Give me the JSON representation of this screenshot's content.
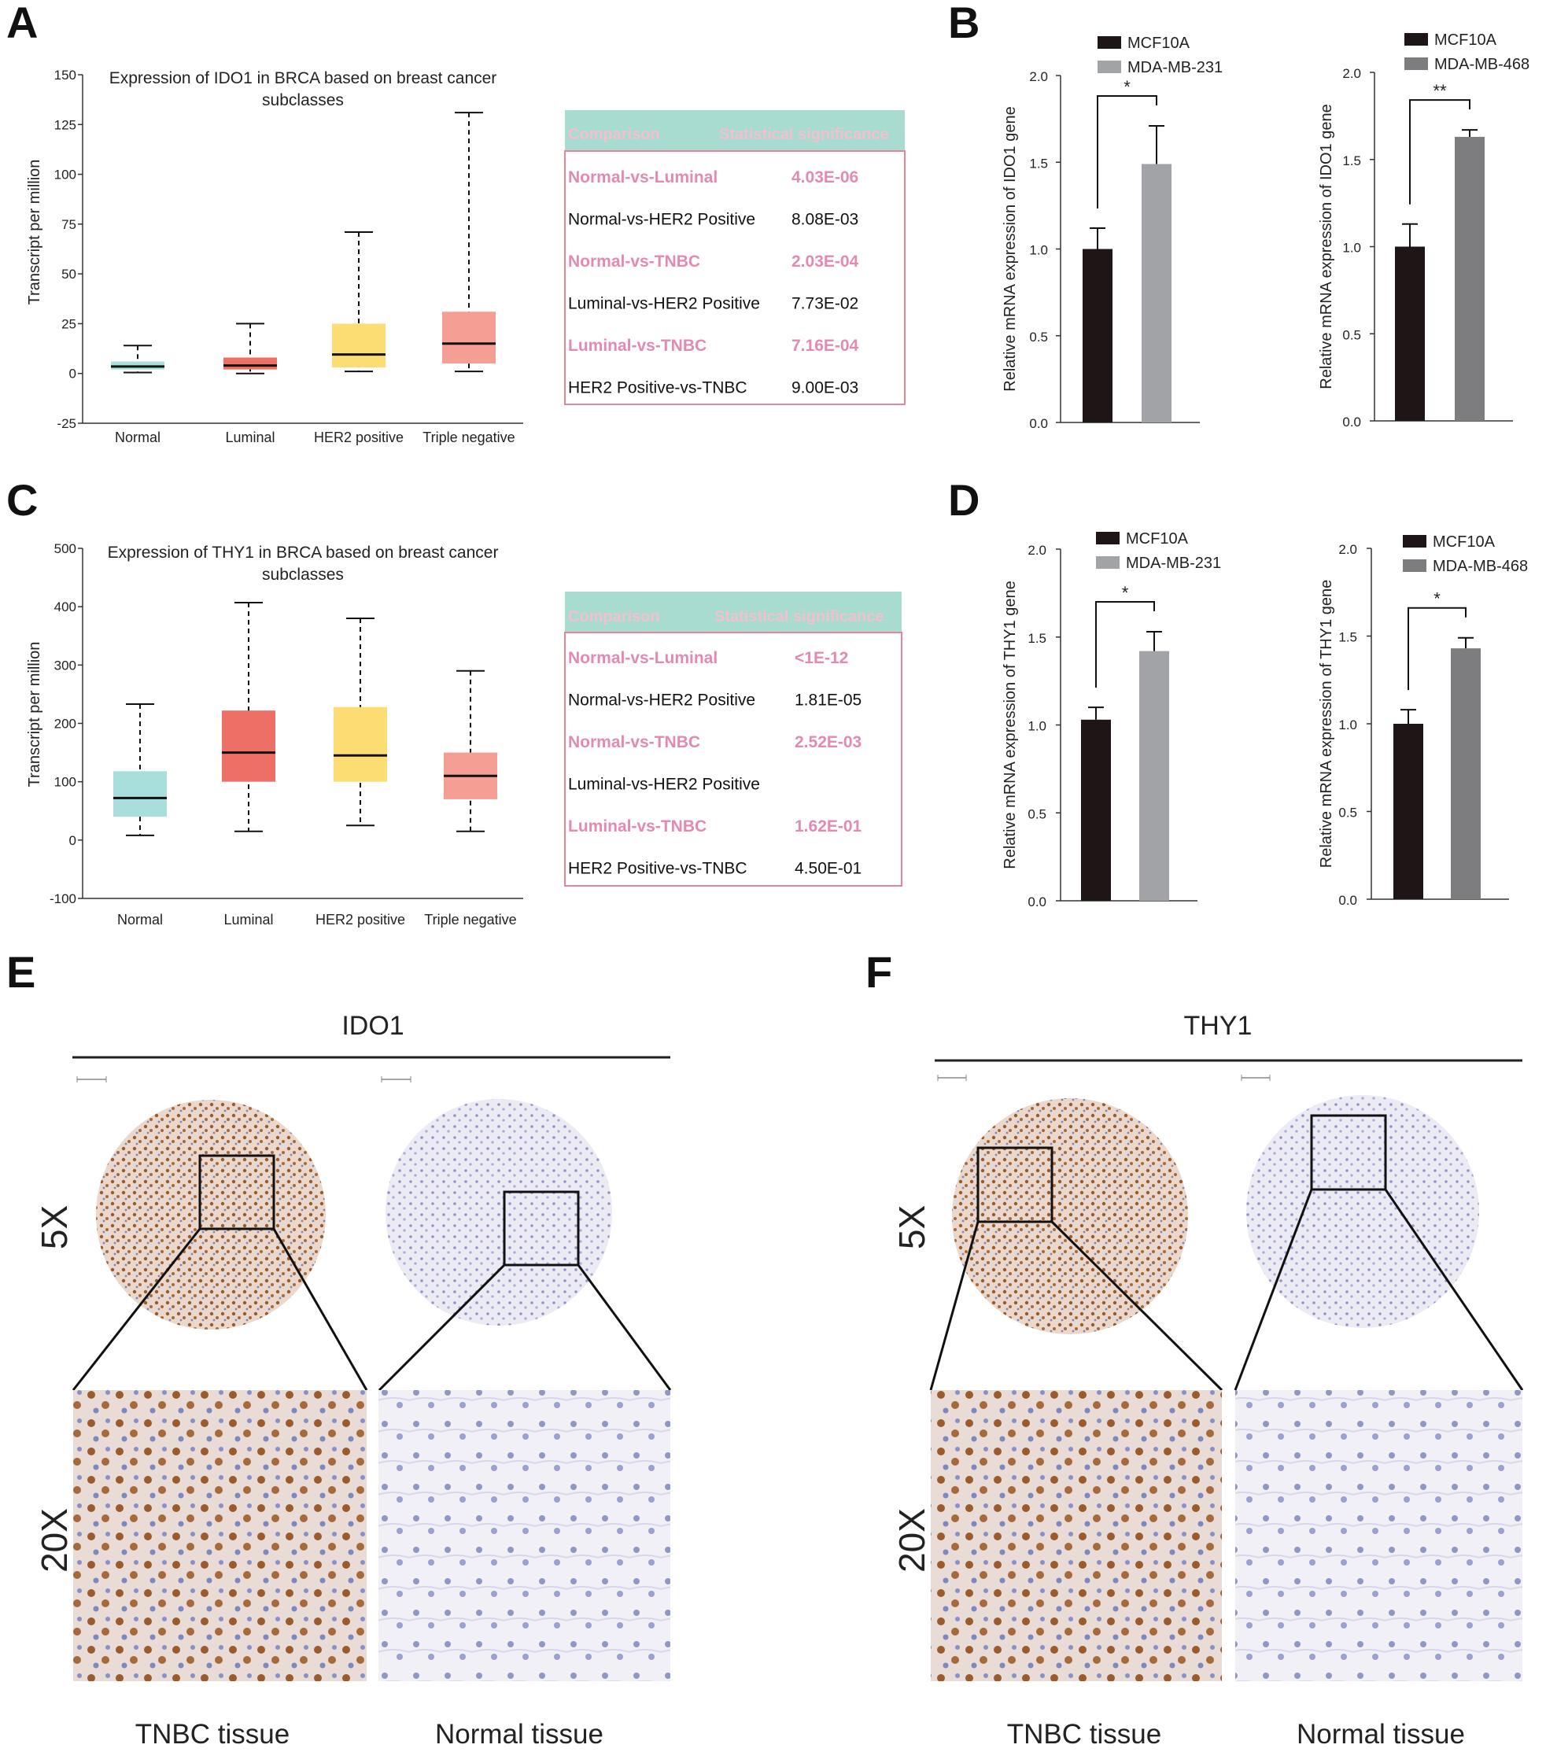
{
  "panels": {
    "A": "A",
    "B": "B",
    "C": "C",
    "D": "D",
    "E": "E",
    "F": "F"
  },
  "box_plots": [
    {
      "id": "A",
      "title_line1": "Expression of IDO1 in BRCA based on breast cancer",
      "title_line2": "subclasses",
      "ylabel": "Transcript per million",
      "ylim": [
        -25,
        150
      ],
      "ticks": [
        -25,
        0,
        25,
        50,
        75,
        100,
        125,
        150
      ],
      "categories": [
        "Normal",
        "Luminal",
        "HER2 positive",
        "Triple negative"
      ],
      "colors": [
        "#a8dedc",
        "#ee6f66",
        "#fbdd73",
        "#f49e94"
      ],
      "stats": [
        {
          "min": 0.5,
          "q1": 2,
          "median": 3.5,
          "q3": 6,
          "max": 14
        },
        {
          "min": 0,
          "q1": 2,
          "median": 4,
          "q3": 8,
          "max": 25
        },
        {
          "min": 1,
          "q1": 3,
          "median": 9.5,
          "q3": 25,
          "max": 71
        },
        {
          "min": 1,
          "q1": 5,
          "median": 15,
          "q3": 31,
          "max": 131
        }
      ]
    },
    {
      "id": "C",
      "title_line1": "Expression of THY1 in BRCA based on breast cancer",
      "title_line2": "subclasses",
      "ylabel": "Transcript per million",
      "ylim": [
        -100,
        500
      ],
      "ticks": [
        -100,
        0,
        100,
        200,
        300,
        400,
        500
      ],
      "categories": [
        "Normal",
        "Luminal",
        "HER2 positive",
        "Triple negative"
      ],
      "colors": [
        "#a8dedc",
        "#ee6f66",
        "#fbdd73",
        "#f49e94"
      ],
      "stats": [
        {
          "min": 8,
          "q1": 40,
          "median": 72,
          "q3": 118,
          "max": 233
        },
        {
          "min": 15,
          "q1": 100,
          "median": 150,
          "q3": 222,
          "max": 407
        },
        {
          "min": 25,
          "q1": 100,
          "median": 145,
          "q3": 228,
          "max": 380
        },
        {
          "min": 15,
          "q1": 70,
          "median": 110,
          "q3": 150,
          "max": 290
        }
      ]
    }
  ],
  "tables": [
    {
      "header": [
        "Comparison",
        "Statistical significance"
      ],
      "rows": [
        [
          "Normal-vs-Luminal",
          "4.03E-06"
        ],
        [
          "Normal-vs-HER2 Positive",
          "8.08E-03"
        ],
        [
          "Normal-vs-TNBC",
          "2.03E-04"
        ],
        [
          "Luminal-vs-HER2 Positive",
          "7.73E-02"
        ],
        [
          "Luminal-vs-TNBC",
          "7.16E-04"
        ],
        [
          "HER2 Positive-vs-TNBC",
          "9.00E-03"
        ]
      ]
    },
    {
      "header": [
        "Comparison",
        "Statistical significance"
      ],
      "rows": [
        [
          "Normal-vs-Luminal",
          "<1E-12"
        ],
        [
          "Normal-vs-HER2 Positive",
          "1.81E-05"
        ],
        [
          "Normal-vs-TNBC",
          "2.52E-03"
        ],
        [
          "Luminal-vs-HER2 Positive",
          ""
        ],
        [
          "Luminal-vs-TNBC",
          "1.62E-01"
        ],
        [
          "HER2 Positive-vs-TNBC",
          "4.50E-01"
        ]
      ]
    }
  ],
  "bar_charts": [
    {
      "ylabel": "Relative mRNA expression of IDO1 gene",
      "ylim": [
        0,
        2
      ],
      "ticks": [
        "0.0",
        "0.5",
        "1.0",
        "1.5",
        "2.0"
      ],
      "series": [
        {
          "name": "MCF10A",
          "value": 1.0,
          "err": 0.12,
          "color": "#1e1616"
        },
        {
          "name": "MDA-MB-231",
          "value": 1.49,
          "err": 0.22,
          "color": "#a2a3a7"
        }
      ],
      "sig": "*"
    },
    {
      "ylabel": "Relative mRNA expression of IDO1 gene",
      "ylim": [
        0,
        2
      ],
      "ticks": [
        "0.0",
        "0.5",
        "1.0",
        "1.5",
        "2.0"
      ],
      "series": [
        {
          "name": "MCF10A",
          "value": 1.0,
          "err": 0.13,
          "color": "#1e1616"
        },
        {
          "name": "MDA-MB-468",
          "value": 1.63,
          "err": 0.04,
          "color": "#7d7d7f"
        }
      ],
      "sig": "**"
    },
    {
      "ylabel": "Relative mRNA expression of THY1 gene",
      "ylim": [
        0,
        2
      ],
      "ticks": [
        "0.0",
        "0.5",
        "1.0",
        "1.5",
        "2.0"
      ],
      "series": [
        {
          "name": "MCF10A",
          "value": 1.03,
          "err": 0.07,
          "color": "#1e1616"
        },
        {
          "name": "MDA-MB-231",
          "value": 1.42,
          "err": 0.11,
          "color": "#a2a3a7"
        }
      ],
      "sig": "*"
    },
    {
      "ylabel": "Relative mRNA expression of THY1 gene",
      "ylim": [
        0,
        2
      ],
      "ticks": [
        "0.0",
        "0.5",
        "1.0",
        "1.5",
        "2.0"
      ],
      "series": [
        {
          "name": "MCF10A",
          "value": 1.0,
          "err": 0.08,
          "color": "#1e1616"
        },
        {
          "name": "MDA-MB-468",
          "value": 1.43,
          "err": 0.06,
          "color": "#7d7d7f"
        }
      ],
      "sig": "*"
    }
  ],
  "ihc": [
    {
      "title": "IDO1",
      "mag_low": "5X",
      "mag_high": "20X",
      "tissue_left": "TNBC tissue",
      "tissue_right": "Normal tissue"
    },
    {
      "title": "THY1",
      "mag_low": "5X",
      "mag_high": "20X",
      "tissue_left": "TNBC tissue",
      "tissue_right": "Normal tissue"
    }
  ]
}
